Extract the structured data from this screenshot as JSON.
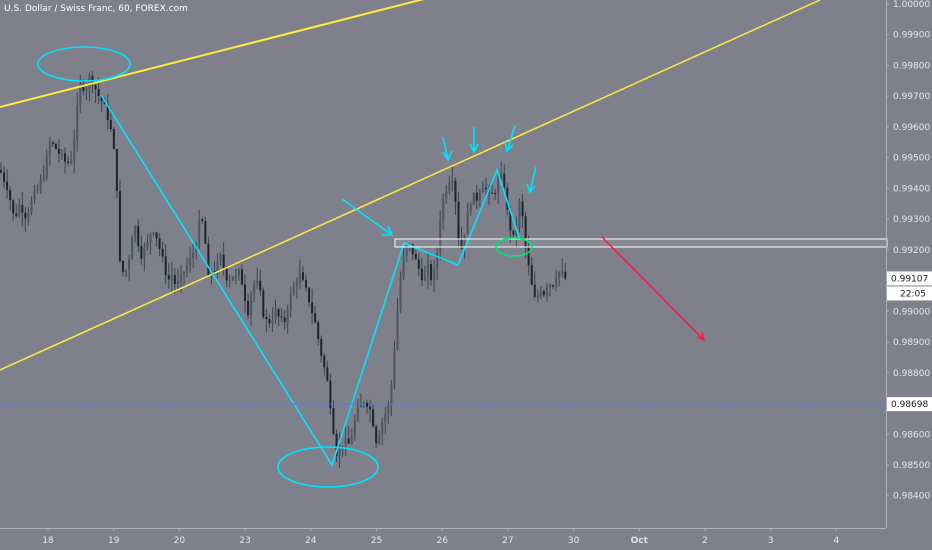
{
  "chart_data": {
    "type": "candlestick",
    "title": "U.S. Dollar / Swiss Franc, 60, FOREX.com",
    "ylim": [
      0.98295,
      1.00013
    ],
    "y_ticks": [
      {
        "value": 1.0,
        "label": "1.00000"
      },
      {
        "value": 0.999,
        "label": "0.99900"
      },
      {
        "value": 0.998,
        "label": "0.99800"
      },
      {
        "value": 0.997,
        "label": "0.99700"
      },
      {
        "value": 0.996,
        "label": "0.99600"
      },
      {
        "value": 0.995,
        "label": "0.99500"
      },
      {
        "value": 0.994,
        "label": "0.99400"
      },
      {
        "value": 0.993,
        "label": "0.99300"
      },
      {
        "value": 0.992,
        "label": "0.99200"
      },
      {
        "value": 0.991,
        "label": "0.99100"
      },
      {
        "value": 0.99,
        "label": "0.99000"
      },
      {
        "value": 0.989,
        "label": "0.98900"
      },
      {
        "value": 0.988,
        "label": "0.98800"
      },
      {
        "value": 0.987,
        "label": "0.98700"
      },
      {
        "value": 0.986,
        "label": "0.98600"
      },
      {
        "value": 0.985,
        "label": "0.98500"
      },
      {
        "value": 0.984,
        "label": "0.98400"
      }
    ],
    "x_labels": [
      "18",
      "19",
      "20",
      "23",
      "24",
      "25",
      "26",
      "27",
      "30",
      "Oct",
      "2",
      "3",
      "4"
    ],
    "last_price": {
      "value": 0.99107,
      "label": "0.99107",
      "countdown": "22:05"
    },
    "alert_line": {
      "value": 0.98698,
      "label": "0.98698"
    },
    "path": [
      [
        0,
        0.9946
      ],
      [
        8,
        0.994
      ],
      [
        14,
        0.993
      ],
      [
        20,
        0.9935
      ],
      [
        26,
        0.9931
      ],
      [
        32,
        0.9936
      ],
      [
        38,
        0.994
      ],
      [
        44,
        0.9945
      ],
      [
        50,
        0.9955
      ],
      [
        56,
        0.9953
      ],
      [
        62,
        0.995
      ],
      [
        67,
        0.9948
      ],
      [
        72,
        0.995
      ],
      [
        77,
        0.9965
      ],
      [
        81,
        0.9975
      ],
      [
        85,
        0.9972
      ],
      [
        89,
        0.9976
      ],
      [
        93,
        0.9975
      ],
      [
        97,
        0.9971
      ],
      [
        101,
        0.9969
      ],
      [
        105,
        0.9966
      ],
      [
        109,
        0.9962
      ],
      [
        113,
        0.9955
      ],
      [
        117,
        0.994
      ],
      [
        120,
        0.9915
      ],
      [
        124,
        0.9912
      ],
      [
        128,
        0.9915
      ],
      [
        132,
        0.9925
      ],
      [
        136,
        0.9928
      ],
      [
        140,
        0.9918
      ],
      [
        144,
        0.992
      ],
      [
        148,
        0.9922
      ],
      [
        152,
        0.9928
      ],
      [
        156,
        0.9925
      ],
      [
        160,
        0.992
      ],
      [
        164,
        0.9915
      ],
      [
        168,
        0.991
      ],
      [
        172,
        0.9912
      ],
      [
        176,
        0.9908
      ],
      [
        180,
        0.991
      ],
      [
        184,
        0.9913
      ],
      [
        188,
        0.9915
      ],
      [
        192,
        0.9918
      ],
      [
        196,
        0.9922
      ],
      [
        200,
        0.993
      ],
      [
        204,
        0.9928
      ],
      [
        208,
        0.991
      ],
      [
        212,
        0.9914
      ],
      [
        216,
        0.9913
      ],
      [
        220,
        0.9918
      ],
      [
        224,
        0.9914
      ],
      [
        228,
        0.991
      ],
      [
        232,
        0.9912
      ],
      [
        236,
        0.9911
      ],
      [
        240,
        0.9913
      ],
      [
        244,
        0.9906
      ],
      [
        248,
        0.99
      ],
      [
        252,
        0.9908
      ],
      [
        256,
        0.991
      ],
      [
        260,
        0.9906
      ],
      [
        264,
        0.9898
      ],
      [
        268,
        0.9896
      ],
      [
        272,
        0.9898
      ],
      [
        276,
        0.99
      ],
      [
        280,
        0.9897
      ],
      [
        284,
        0.9896
      ],
      [
        288,
        0.9902
      ],
      [
        292,
        0.9906
      ],
      [
        296,
        0.991
      ],
      [
        300,
        0.9912
      ],
      [
        304,
        0.9908
      ],
      [
        308,
        0.9905
      ],
      [
        312,
        0.99
      ],
      [
        316,
        0.9895
      ],
      [
        320,
        0.9888
      ],
      [
        324,
        0.9882
      ],
      [
        328,
        0.9876
      ],
      [
        332,
        0.9866
      ],
      [
        336,
        0.9854
      ],
      [
        340,
        0.9856
      ],
      [
        344,
        0.9858
      ],
      [
        348,
        0.9856
      ],
      [
        352,
        0.986
      ],
      [
        356,
        0.9866
      ],
      [
        360,
        0.9869
      ],
      [
        364,
        0.9871
      ],
      [
        368,
        0.987
      ],
      [
        372,
        0.9866
      ],
      [
        376,
        0.9858
      ],
      [
        380,
        0.9862
      ],
      [
        384,
        0.9866
      ],
      [
        388,
        0.9868
      ],
      [
        392,
        0.9878
      ],
      [
        396,
        0.9895
      ],
      [
        400,
        0.991
      ],
      [
        404,
        0.9918
      ],
      [
        408,
        0.9922
      ],
      [
        412,
        0.992
      ],
      [
        416,
        0.9916
      ],
      [
        420,
        0.9913
      ],
      [
        424,
        0.991
      ],
      [
        428,
        0.9914
      ],
      [
        432,
        0.991
      ],
      [
        436,
        0.9915
      ],
      [
        440,
        0.993
      ],
      [
        444,
        0.9938
      ],
      [
        448,
        0.9942
      ],
      [
        452,
        0.9945
      ],
      [
        456,
        0.9935
      ],
      [
        460,
        0.9918
      ],
      [
        464,
        0.9925
      ],
      [
        468,
        0.9932
      ],
      [
        472,
        0.9938
      ],
      [
        476,
        0.9936
      ],
      [
        480,
        0.994
      ],
      [
        484,
        0.9942
      ],
      [
        488,
        0.9937
      ],
      [
        492,
        0.9938
      ],
      [
        496,
        0.994
      ],
      [
        500,
        0.9944
      ],
      [
        504,
        0.9942
      ],
      [
        508,
        0.993
      ],
      [
        512,
        0.9925
      ],
      [
        515,
        0.9922
      ],
      [
        518,
        0.9934
      ],
      [
        521,
        0.9936
      ],
      [
        524,
        0.9925
      ],
      [
        527,
        0.9917
      ],
      [
        530,
        0.9912
      ],
      [
        533,
        0.9905
      ],
      [
        536,
        0.9903
      ],
      [
        540,
        0.9908
      ],
      [
        544,
        0.9906
      ],
      [
        548,
        0.991
      ],
      [
        552,
        0.9908
      ],
      [
        556,
        0.9912
      ],
      [
        560,
        0.9913
      ],
      [
        564,
        0.9911
      ],
      [
        568,
        0.991
      ]
    ],
    "colors": {
      "background": "#7e818b",
      "up_candle": "#4c5563",
      "down_candle": "#1a2330",
      "wick": "#3c4450",
      "trendline": "#ffeb3b",
      "annotation": "#00e5ff",
      "green_mark": "#00e676",
      "red_arrow": "#ff1744",
      "zone_border": "#ffffff",
      "alert_line": "#4c80e4",
      "axis_text": "#e4e6ea",
      "price_badge_bg": "#ffffff",
      "price_badge_text": "#131722",
      "countdown_bg": "#ffffff"
    }
  }
}
